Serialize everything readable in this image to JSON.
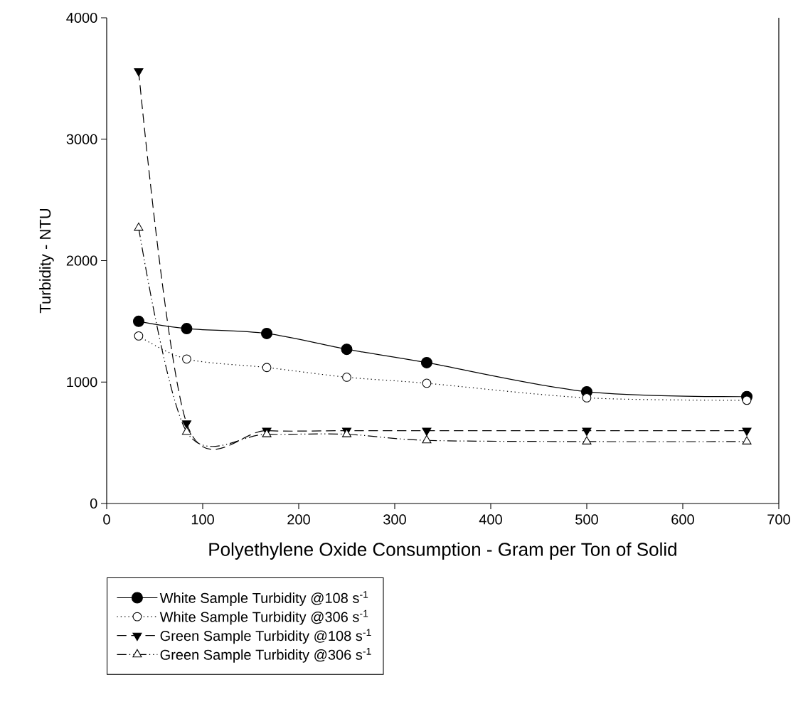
{
  "chart_data": {
    "type": "line",
    "xlabel": "Polyethylene Oxide Consumption - Gram per Ton of Solid",
    "ylabel": "Turbidity - NTU",
    "x": [
      33.3,
      83.3,
      166.7,
      250,
      333.3,
      500,
      666.7
    ],
    "series": [
      {
        "name": "White Sample Turbidity @108 s$^{-1}$",
        "color": "#000000",
        "marker": "circle",
        "line_style": "solid",
        "values": [
          1500,
          1440,
          1400,
          1270,
          1160,
          920,
          880
        ]
      },
      {
        "name": "White Sample Turbidity @306 s$^{-1}$",
        "color": "#000000",
        "marker": "circle",
        "line_style": "dotted",
        "values": [
          1380,
          1190,
          1120,
          1040,
          990,
          870,
          850
        ]
      },
      {
        "name": "Green Sample Turbidity @108 s$^{-1}$",
        "color": "#000000",
        "marker": "triangle",
        "line_style": "dashed",
        "values": [
          3560,
          660,
          600,
          600,
          600,
          600,
          600
        ]
      },
      {
        "name": "Green Sample Turbidity @306 s$^{-1}$",
        "color": "#000000",
        "marker": "triangle",
        "line_style": "dashdotdot",
        "values": [
          2270,
          590,
          570,
          570,
          520,
          510,
          510
        ]
      }
    ],
    "xlim": [
      0,
      700
    ],
    "xticks": [
      0,
      100,
      200,
      300,
      400,
      500,
      600,
      700
    ],
    "ylim": [
      0,
      4000
    ],
    "yticks": [
      0,
      1000,
      2000,
      3000,
      4000
    ],
    "grid": false,
    "legend": "bottom"
  }
}
